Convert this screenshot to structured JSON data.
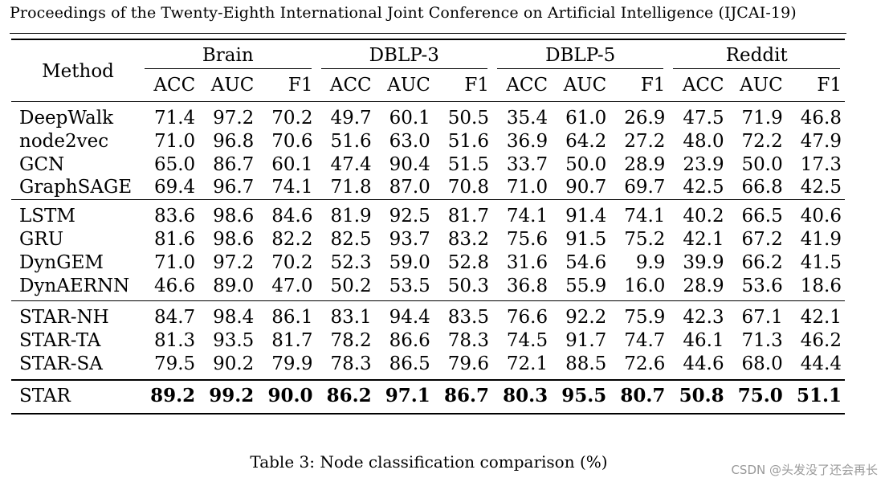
{
  "header": {
    "text": "Proceedings of the Twenty-Eighth International Joint Conference on Artificial Intelligence (IJCAI-19)"
  },
  "table": {
    "method_label": "Method",
    "datasets": [
      "Brain",
      "DBLP-3",
      "DBLP-5",
      "Reddit"
    ],
    "metrics": [
      "ACC",
      "AUC",
      "F1"
    ],
    "groups": [
      [
        {
          "method": "DeepWalk",
          "values": [
            "71.4",
            "97.2",
            "70.2",
            "49.7",
            "60.1",
            "50.5",
            "35.4",
            "61.0",
            "26.9",
            "47.5",
            "71.9",
            "46.8"
          ]
        },
        {
          "method": "node2vec",
          "values": [
            "71.0",
            "96.8",
            "70.6",
            "51.6",
            "63.0",
            "51.6",
            "36.9",
            "64.2",
            "27.2",
            "48.0",
            "72.2",
            "47.9"
          ]
        },
        {
          "method": "GCN",
          "values": [
            "65.0",
            "86.7",
            "60.1",
            "47.4",
            "90.4",
            "51.5",
            "33.7",
            "50.0",
            "28.9",
            "23.9",
            "50.0",
            "17.3"
          ]
        },
        {
          "method": "GraphSAGE",
          "values": [
            "69.4",
            "96.7",
            "74.1",
            "71.8",
            "87.0",
            "70.8",
            "71.0",
            "90.7",
            "69.7",
            "42.5",
            "66.8",
            "42.5"
          ]
        }
      ],
      [
        {
          "method": "LSTM",
          "values": [
            "83.6",
            "98.6",
            "84.6",
            "81.9",
            "92.5",
            "81.7",
            "74.1",
            "91.4",
            "74.1",
            "40.2",
            "66.5",
            "40.6"
          ]
        },
        {
          "method": "GRU",
          "values": [
            "81.6",
            "98.6",
            "82.2",
            "82.5",
            "93.7",
            "83.2",
            "75.6",
            "91.5",
            "75.2",
            "42.1",
            "67.2",
            "41.9"
          ]
        },
        {
          "method": "DynGEM",
          "values": [
            "71.0",
            "97.2",
            "70.2",
            "52.3",
            "59.0",
            "52.8",
            "31.6",
            "54.6",
            "9.9",
            "39.9",
            "66.2",
            "41.5"
          ]
        },
        {
          "method": "DynAERNN",
          "values": [
            "46.6",
            "89.0",
            "47.0",
            "50.2",
            "53.5",
            "50.3",
            "36.8",
            "55.9",
            "16.0",
            "28.9",
            "53.6",
            "18.6"
          ]
        }
      ],
      [
        {
          "method": "STAR-NH",
          "values": [
            "84.7",
            "98.4",
            "86.1",
            "83.1",
            "94.4",
            "83.5",
            "76.6",
            "92.2",
            "75.9",
            "42.3",
            "67.1",
            "42.1"
          ]
        },
        {
          "method": "STAR-TA",
          "values": [
            "81.3",
            "93.5",
            "81.7",
            "78.2",
            "86.6",
            "78.3",
            "74.5",
            "91.7",
            "74.7",
            "46.1",
            "71.3",
            "46.2"
          ]
        },
        {
          "method": "STAR-SA",
          "values": [
            "79.5",
            "90.2",
            "79.9",
            "78.3",
            "86.5",
            "79.6",
            "72.1",
            "88.5",
            "72.6",
            "44.6",
            "68.0",
            "44.4"
          ]
        }
      ],
      [
        {
          "method": "STAR",
          "values": [
            "89.2",
            "99.2",
            "90.0",
            "86.2",
            "97.1",
            "86.7",
            "80.3",
            "95.5",
            "80.7",
            "50.8",
            "75.0",
            "51.1"
          ]
        }
      ]
    ]
  },
  "caption": "Table 3: Node classification comparison (%)",
  "watermark": "CSDN @头发没了还会再长"
}
